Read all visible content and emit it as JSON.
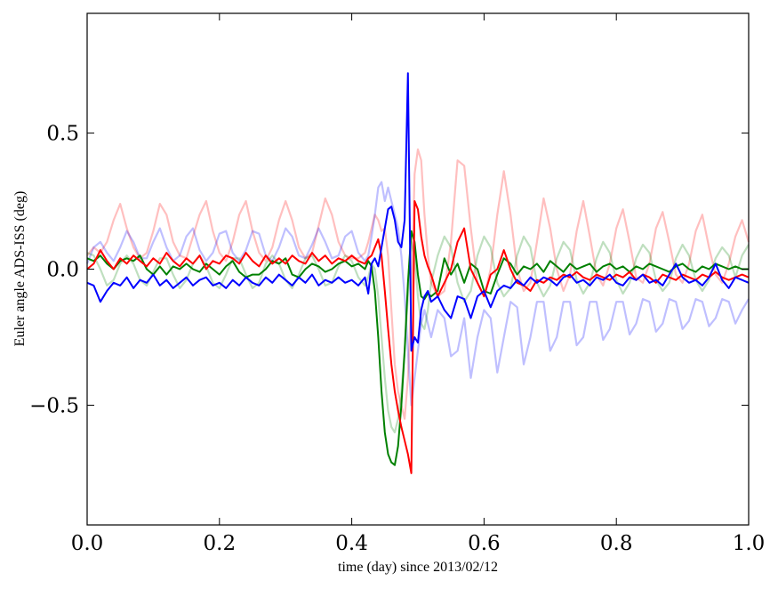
{
  "chart_data": {
    "type": "line",
    "title": "",
    "xlabel": "time (day) since 2013/02/12",
    "ylabel": "Euler angle ADS-ISS (deg)",
    "xlim": [
      0.0,
      1.0
    ],
    "ylim": [
      -0.94,
      0.94
    ],
    "xticks": [
      0.0,
      0.2,
      0.4,
      0.6,
      0.8,
      1.0
    ],
    "xtick_labels": [
      "0.0",
      "0.2",
      "0.4",
      "0.6",
      "0.8",
      "1.0"
    ],
    "yticks": [
      -0.5,
      0.0,
      0.5
    ],
    "ytick_labels": [
      "−0.5",
      "0.0",
      "0.5"
    ],
    "grid": false,
    "legend": "none",
    "x": [
      0,
      0.01,
      0.02,
      0.03,
      0.04,
      0.05,
      0.06,
      0.07,
      0.08,
      0.09,
      0.1,
      0.11,
      0.12,
      0.13,
      0.14,
      0.15,
      0.16,
      0.17,
      0.18,
      0.19,
      0.2,
      0.21,
      0.22,
      0.23,
      0.24,
      0.25,
      0.26,
      0.27,
      0.28,
      0.29,
      0.3,
      0.31,
      0.32,
      0.33,
      0.34,
      0.35,
      0.36,
      0.37,
      0.38,
      0.39,
      0.4,
      0.41,
      0.42,
      0.425,
      0.43,
      0.435,
      0.44,
      0.445,
      0.45,
      0.455,
      0.46,
      0.465,
      0.47,
      0.475,
      0.48,
      0.485,
      0.49,
      0.495,
      0.5,
      0.505,
      0.51,
      0.515,
      0.52,
      0.53,
      0.54,
      0.55,
      0.56,
      0.57,
      0.58,
      0.59,
      0.6,
      0.61,
      0.62,
      0.63,
      0.64,
      0.65,
      0.66,
      0.67,
      0.68,
      0.69,
      0.7,
      0.71,
      0.72,
      0.73,
      0.74,
      0.75,
      0.76,
      0.77,
      0.78,
      0.79,
      0.8,
      0.81,
      0.82,
      0.83,
      0.84,
      0.85,
      0.86,
      0.87,
      0.88,
      0.89,
      0.9,
      0.91,
      0.92,
      0.93,
      0.94,
      0.95,
      0.96,
      0.97,
      0.98,
      0.99,
      1.0
    ],
    "series": [
      {
        "color": "#ff0000",
        "alpha": 0.25,
        "values": [
          0.05,
          0.08,
          0.06,
          0.1,
          0.18,
          0.24,
          0.15,
          0.08,
          0.04,
          0.06,
          0.14,
          0.24,
          0.2,
          0.1,
          0.05,
          0.04,
          0.12,
          0.2,
          0.25,
          0.14,
          0.06,
          0.03,
          0.1,
          0.2,
          0.25,
          0.14,
          0.06,
          0.03,
          0.08,
          0.18,
          0.25,
          0.18,
          0.08,
          0.04,
          0.06,
          0.16,
          0.26,
          0.2,
          0.1,
          0.05,
          0.04,
          0.04,
          0.06,
          0.1,
          0.15,
          0.2,
          0.18,
          0.14,
          0.15,
          0.05,
          -0.15,
          -0.35,
          -0.45,
          -0.5,
          -0.55,
          -0.4,
          -0.1,
          0.35,
          0.44,
          0.4,
          0.2,
          0.05,
          -0.05,
          -0.1,
          -0.08,
          0.1,
          0.4,
          0.38,
          0.15,
          -0.05,
          -0.1,
          0.0,
          0.2,
          0.36,
          0.2,
          0.0,
          -0.08,
          -0.05,
          0.1,
          0.26,
          0.15,
          0.0,
          -0.08,
          -0.02,
          0.14,
          0.25,
          0.12,
          -0.02,
          -0.06,
          0.02,
          0.15,
          0.22,
          0.1,
          -0.03,
          -0.05,
          0.02,
          0.15,
          0.21,
          0.1,
          -0.02,
          -0.05,
          0.02,
          0.14,
          0.2,
          0.08,
          -0.02,
          -0.05,
          0.02,
          0.12,
          0.18,
          0.1
        ]
      },
      {
        "color": "#0000ff",
        "alpha": 0.25,
        "values": [
          0.02,
          0.08,
          0.1,
          0.06,
          0.03,
          0.08,
          0.14,
          0.1,
          0.04,
          0.04,
          0.1,
          0.15,
          0.08,
          0.03,
          0.05,
          0.12,
          0.15,
          0.07,
          0.03,
          0.06,
          0.13,
          0.14,
          0.06,
          0.03,
          0.07,
          0.14,
          0.13,
          0.05,
          0.03,
          0.08,
          0.15,
          0.12,
          0.05,
          0.04,
          0.09,
          0.15,
          0.1,
          0.04,
          0.05,
          0.12,
          0.14,
          0.06,
          0.03,
          0.05,
          0.12,
          0.2,
          0.3,
          0.32,
          0.25,
          0.3,
          0.25,
          0.2,
          0.15,
          0.05,
          -0.1,
          -0.3,
          -0.5,
          -0.4,
          -0.3,
          -0.2,
          -0.15,
          -0.2,
          -0.25,
          -0.15,
          -0.18,
          -0.32,
          -0.3,
          -0.18,
          -0.4,
          -0.25,
          -0.15,
          -0.18,
          -0.38,
          -0.25,
          -0.12,
          -0.14,
          -0.35,
          -0.25,
          -0.12,
          -0.12,
          -0.3,
          -0.25,
          -0.12,
          -0.12,
          -0.28,
          -0.25,
          -0.12,
          -0.12,
          -0.26,
          -0.22,
          -0.12,
          -0.12,
          -0.24,
          -0.2,
          -0.11,
          -0.12,
          -0.23,
          -0.2,
          -0.11,
          -0.12,
          -0.22,
          -0.19,
          -0.11,
          -0.12,
          -0.21,
          -0.18,
          -0.11,
          -0.12,
          -0.2,
          -0.15,
          -0.11
        ]
      },
      {
        "color": "#008000",
        "alpha": 0.25,
        "values": [
          0.06,
          0.05,
          0.0,
          -0.06,
          -0.04,
          0.02,
          0.05,
          0.02,
          -0.04,
          -0.06,
          -0.01,
          0.04,
          0.04,
          -0.02,
          -0.07,
          -0.04,
          0.02,
          0.05,
          0.01,
          -0.05,
          -0.07,
          -0.02,
          0.04,
          0.04,
          -0.02,
          -0.07,
          -0.05,
          0.02,
          0.05,
          0.02,
          -0.04,
          -0.07,
          -0.02,
          0.04,
          0.05,
          0.0,
          -0.06,
          -0.05,
          0.01,
          0.05,
          0.03,
          -0.03,
          -0.06,
          -0.03,
          0.02,
          0.0,
          -0.1,
          -0.25,
          -0.4,
          -0.52,
          -0.58,
          -0.6,
          -0.55,
          -0.45,
          -0.3,
          -0.1,
          0.1,
          0.05,
          -0.1,
          -0.2,
          -0.22,
          -0.15,
          -0.05,
          0.05,
          0.12,
          0.08,
          -0.05,
          -0.12,
          -0.08,
          0.05,
          0.12,
          0.08,
          -0.05,
          -0.1,
          -0.07,
          0.05,
          0.12,
          0.08,
          -0.05,
          -0.1,
          -0.06,
          0.04,
          0.1,
          0.07,
          -0.04,
          -0.09,
          -0.05,
          0.04,
          0.1,
          0.06,
          -0.04,
          -0.09,
          -0.05,
          0.04,
          0.09,
          0.06,
          -0.04,
          -0.08,
          -0.05,
          0.04,
          0.09,
          0.05,
          -0.04,
          -0.08,
          -0.04,
          0.04,
          0.08,
          0.05,
          -0.03,
          0.05,
          0.09
        ]
      },
      {
        "color": "#008000",
        "alpha": 1,
        "values": [
          0.04,
          0.03,
          0.05,
          0.02,
          0.0,
          0.03,
          0.04,
          0.03,
          0.05,
          0.0,
          -0.02,
          0.01,
          -0.02,
          0.01,
          0.0,
          0.02,
          0.0,
          -0.01,
          0.02,
          0.0,
          -0.02,
          0.01,
          0.03,
          -0.01,
          -0.03,
          -0.02,
          -0.02,
          0.0,
          0.03,
          0.02,
          0.04,
          -0.02,
          -0.03,
          0.0,
          0.02,
          0.01,
          -0.01,
          0.0,
          0.02,
          0.03,
          0.01,
          0.02,
          0.0,
          0.03,
          0.01,
          -0.08,
          -0.25,
          -0.45,
          -0.6,
          -0.68,
          -0.71,
          -0.72,
          -0.65,
          -0.5,
          -0.3,
          -0.05,
          0.14,
          0.1,
          -0.02,
          -0.1,
          -0.11,
          -0.09,
          -0.1,
          -0.08,
          0.04,
          -0.02,
          0.02,
          -0.05,
          0.02,
          0.0,
          -0.08,
          -0.09,
          -0.02,
          0.04,
          0.02,
          -0.02,
          0.01,
          0.0,
          0.02,
          -0.01,
          0.03,
          0.01,
          -0.01,
          0.02,
          0.0,
          0.01,
          0.02,
          -0.01,
          0.01,
          0.02,
          0.0,
          0.01,
          -0.01,
          0.01,
          0.0,
          0.02,
          0.01,
          0.0,
          -0.01,
          0.01,
          0.02,
          0.0,
          -0.01,
          0.01,
          0.0,
          0.02,
          0.01,
          0.0,
          0.01,
          0.0,
          0.0
        ]
      },
      {
        "color": "#ff0000",
        "alpha": 1,
        "values": [
          0.0,
          0.02,
          0.07,
          0.03,
          0.0,
          0.04,
          0.02,
          0.05,
          0.03,
          0.01,
          0.04,
          0.02,
          0.06,
          0.03,
          0.01,
          0.04,
          0.02,
          0.05,
          0.0,
          0.03,
          0.02,
          0.05,
          0.04,
          0.02,
          0.06,
          0.03,
          0.01,
          0.05,
          0.02,
          0.04,
          0.02,
          0.05,
          0.03,
          0.02,
          0.06,
          0.03,
          0.05,
          0.02,
          0.04,
          0.03,
          0.05,
          0.03,
          0.02,
          0.04,
          0.05,
          0.08,
          0.11,
          0.05,
          -0.08,
          -0.22,
          -0.35,
          -0.45,
          -0.52,
          -0.58,
          -0.63,
          -0.68,
          -0.75,
          0.25,
          0.22,
          0.12,
          0.05,
          0.01,
          -0.02,
          -0.1,
          -0.05,
          0.0,
          0.1,
          0.15,
          0.0,
          -0.05,
          -0.1,
          -0.02,
          0.0,
          0.07,
          0.0,
          -0.05,
          -0.06,
          -0.08,
          -0.04,
          -0.05,
          -0.03,
          -0.04,
          -0.02,
          -0.03,
          -0.01,
          -0.03,
          -0.04,
          -0.02,
          -0.03,
          -0.04,
          -0.02,
          -0.03,
          -0.01,
          -0.04,
          -0.02,
          -0.03,
          -0.05,
          -0.02,
          -0.03,
          -0.04,
          -0.02,
          -0.03,
          -0.04,
          -0.02,
          -0.03,
          -0.01,
          -0.03,
          -0.04,
          -0.03,
          -0.02,
          -0.03
        ]
      },
      {
        "color": "#0000ff",
        "alpha": 1,
        "values": [
          -0.05,
          -0.06,
          -0.12,
          -0.08,
          -0.05,
          -0.06,
          -0.03,
          -0.07,
          -0.04,
          -0.05,
          -0.02,
          -0.06,
          -0.04,
          -0.07,
          -0.05,
          -0.03,
          -0.06,
          -0.04,
          -0.03,
          -0.06,
          -0.05,
          -0.07,
          -0.04,
          -0.06,
          -0.03,
          -0.05,
          -0.06,
          -0.03,
          -0.05,
          -0.02,
          -0.04,
          -0.06,
          -0.03,
          -0.05,
          -0.02,
          -0.06,
          -0.04,
          -0.05,
          -0.03,
          -0.05,
          -0.04,
          -0.06,
          -0.03,
          -0.09,
          0.02,
          0.04,
          0.01,
          0.08,
          0.15,
          0.22,
          0.23,
          0.18,
          0.1,
          0.08,
          0.18,
          0.72,
          -0.3,
          -0.25,
          -0.27,
          -0.15,
          -0.1,
          -0.08,
          -0.12,
          -0.1,
          -0.15,
          -0.18,
          -0.1,
          -0.11,
          -0.18,
          -0.1,
          -0.08,
          -0.14,
          -0.08,
          -0.06,
          -0.07,
          -0.04,
          -0.06,
          -0.03,
          -0.05,
          -0.03,
          -0.04,
          -0.06,
          -0.03,
          -0.02,
          -0.05,
          -0.04,
          -0.06,
          -0.03,
          -0.04,
          -0.02,
          -0.05,
          -0.06,
          -0.03,
          -0.04,
          -0.02,
          -0.05,
          -0.04,
          -0.06,
          -0.02,
          0.02,
          -0.03,
          -0.05,
          -0.04,
          -0.06,
          -0.03,
          0.02,
          -0.04,
          -0.07,
          -0.03,
          -0.04,
          -0.05
        ]
      }
    ]
  }
}
